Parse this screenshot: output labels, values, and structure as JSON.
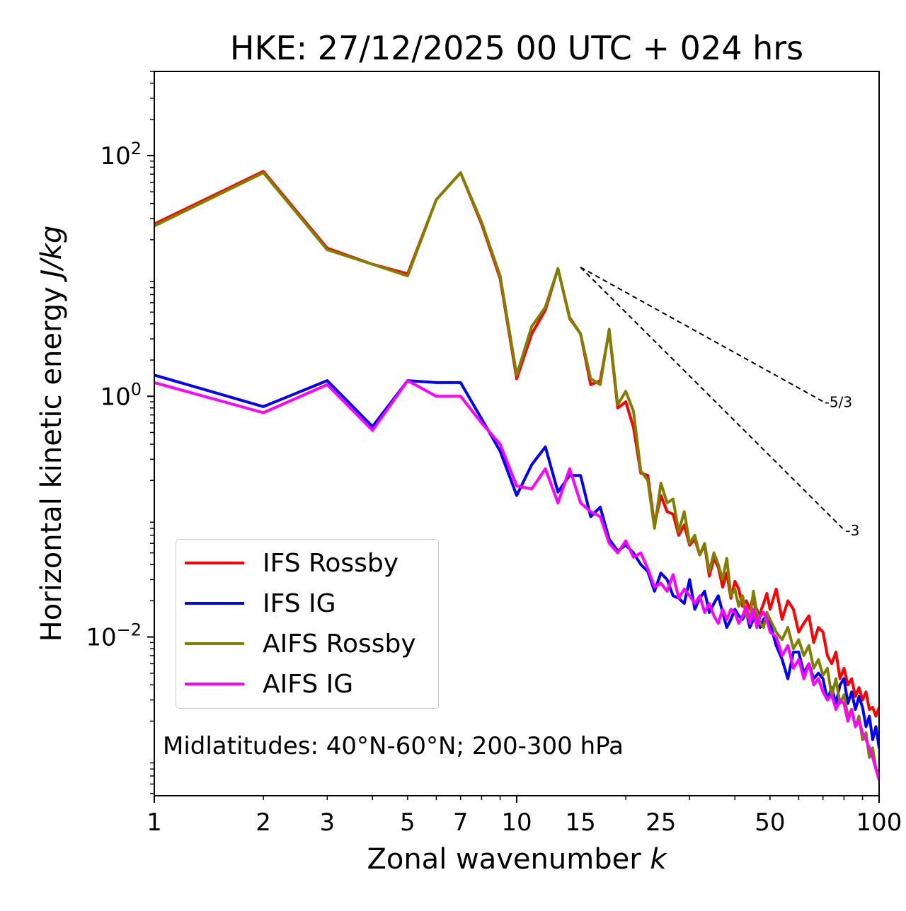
{
  "chart_data": {
    "type": "line",
    "title": "HKE: 27/12/2025 00 UTC + 024 hrs",
    "xlabel": "Zonal wavenumber",
    "xlabel_var": "k",
    "ylabel": "Horizontal kinetic energy",
    "ylabel_unit": "J/kg",
    "xscale": "log",
    "yscale": "log",
    "xlim": [
      1,
      100
    ],
    "ylim": [
      0.00048,
      500
    ],
    "xticks": [
      1,
      2,
      3,
      5,
      7,
      10,
      15,
      25,
      50,
      100
    ],
    "xtick_labels": [
      "1",
      "2",
      "3",
      "5",
      "7",
      "10",
      "15",
      "25",
      "50",
      "100"
    ],
    "yticks": [
      0.01,
      1,
      100
    ],
    "ytick_labels": [
      {
        "base": "10",
        "exp": "−2"
      },
      {
        "base": "10",
        "exp": "0"
      },
      {
        "base": "10",
        "exp": "2"
      }
    ],
    "annotation": "Midlatitudes: 40°N-60°N; 200-300 hPa",
    "legend_position": "lower-left",
    "reference_lines": [
      {
        "label": "-5/3",
        "slope": -1.6667,
        "x_start": 15,
        "x_end": 70,
        "y_start": 11.8
      },
      {
        "label": "-3",
        "slope": -3,
        "x_start": 15,
        "x_end": 80,
        "y_start": 11.8
      }
    ],
    "series": [
      {
        "name": "IFS Rossby",
        "color": "#ff0000",
        "x": [
          1,
          2,
          3,
          4,
          5,
          6,
          7,
          8,
          9,
          10,
          11,
          12,
          13,
          14,
          15,
          16,
          17,
          18,
          19,
          20,
          21,
          22,
          23,
          24,
          25,
          26,
          27,
          28,
          29,
          30,
          31,
          32,
          33,
          34,
          35,
          36,
          37,
          38,
          39,
          40,
          41,
          42,
          43,
          44,
          45,
          46,
          47,
          48,
          49,
          50,
          52,
          54,
          56,
          58,
          60,
          62,
          64,
          66,
          68,
          70,
          72,
          74,
          76,
          78,
          80,
          82,
          84,
          86,
          88,
          90,
          92,
          94,
          96,
          98,
          100
        ],
        "y": [
          27,
          74,
          17,
          12.5,
          10.4,
          43,
          72,
          27,
          9.5,
          1.4,
          3.3,
          5.2,
          11.5,
          4.5,
          3.3,
          1.25,
          1.35,
          3.5,
          0.8,
          0.9,
          0.55,
          0.23,
          0.22,
          0.085,
          0.15,
          0.11,
          0.105,
          0.07,
          0.085,
          0.058,
          0.065,
          0.048,
          0.058,
          0.032,
          0.045,
          0.038,
          0.026,
          0.034,
          0.021,
          0.029,
          0.025,
          0.018,
          0.02,
          0.017,
          0.022,
          0.014,
          0.016,
          0.019,
          0.023,
          0.017,
          0.025,
          0.014,
          0.02,
          0.017,
          0.011,
          0.013,
          0.015,
          0.009,
          0.012,
          0.011,
          0.007,
          0.006,
          0.0075,
          0.0045,
          0.0055,
          0.004,
          0.0045,
          0.0032,
          0.0038,
          0.003,
          0.0035,
          0.0025,
          0.0026,
          0.0022,
          0.0026
        ]
      },
      {
        "name": "IFS IG",
        "color": "#0000ff",
        "x": [
          1,
          2,
          3,
          4,
          5,
          6,
          7,
          8,
          9,
          10,
          11,
          12,
          13,
          14,
          15,
          16,
          17,
          18,
          19,
          20,
          21,
          22,
          23,
          24,
          25,
          26,
          27,
          28,
          29,
          30,
          31,
          32,
          33,
          34,
          35,
          36,
          37,
          38,
          39,
          40,
          41,
          42,
          43,
          44,
          45,
          46,
          47,
          48,
          49,
          50,
          52,
          54,
          56,
          58,
          60,
          62,
          64,
          66,
          68,
          70,
          72,
          74,
          76,
          78,
          80,
          82,
          84,
          86,
          88,
          90,
          92,
          94,
          96,
          98,
          100
        ],
        "y": [
          1.5,
          0.82,
          1.35,
          0.56,
          1.35,
          1.3,
          1.3,
          0.65,
          0.35,
          0.15,
          0.27,
          0.38,
          0.16,
          0.22,
          0.22,
          0.1,
          0.12,
          0.065,
          0.052,
          0.058,
          0.05,
          0.04,
          0.035,
          0.024,
          0.034,
          0.03,
          0.022,
          0.021,
          0.019,
          0.03,
          0.017,
          0.021,
          0.024,
          0.016,
          0.019,
          0.022,
          0.016,
          0.012,
          0.014,
          0.017,
          0.015,
          0.014,
          0.016,
          0.012,
          0.014,
          0.017,
          0.012,
          0.014,
          0.015,
          0.013,
          0.0085,
          0.0065,
          0.0045,
          0.0075,
          0.0075,
          0.005,
          0.006,
          0.0045,
          0.005,
          0.0045,
          0.003,
          0.0038,
          0.0028,
          0.004,
          0.0045,
          0.0028,
          0.0035,
          0.0025,
          0.0032,
          0.0026,
          0.0018,
          0.0022,
          0.0014,
          0.0018,
          0.0012
        ]
      },
      {
        "name": "AIFS Rossby",
        "color": "#808000",
        "x": [
          1,
          2,
          3,
          4,
          5,
          6,
          7,
          8,
          9,
          10,
          11,
          12,
          13,
          14,
          15,
          16,
          17,
          18,
          19,
          20,
          21,
          22,
          23,
          24,
          25,
          26,
          27,
          28,
          29,
          30,
          31,
          32,
          33,
          34,
          35,
          36,
          37,
          38,
          39,
          40,
          41,
          42,
          43,
          44,
          45,
          46,
          47,
          48,
          49,
          50,
          52,
          54,
          56,
          58,
          60,
          62,
          64,
          66,
          68,
          70,
          72,
          74,
          76,
          78,
          80,
          82,
          84,
          86,
          88,
          90,
          92,
          94,
          96,
          98,
          100
        ],
        "y": [
          26,
          72,
          16.5,
          12.5,
          10,
          43,
          72,
          28,
          10,
          1.5,
          3.8,
          5.5,
          11.5,
          4.4,
          3.3,
          1.4,
          1.25,
          3.6,
          0.85,
          1.1,
          0.75,
          0.24,
          0.2,
          0.08,
          0.19,
          0.13,
          0.14,
          0.075,
          0.11,
          0.06,
          0.07,
          0.048,
          0.06,
          0.035,
          0.05,
          0.04,
          0.03,
          0.045,
          0.022,
          0.025,
          0.018,
          0.022,
          0.015,
          0.014,
          0.024,
          0.016,
          0.013,
          0.012,
          0.016,
          0.014,
          0.011,
          0.0095,
          0.012,
          0.008,
          0.0095,
          0.007,
          0.0085,
          0.0055,
          0.0065,
          0.0048,
          0.0055,
          0.0032,
          0.0045,
          0.0028,
          0.0033,
          0.0022,
          0.0025,
          0.0018,
          0.0022,
          0.0014,
          0.0016,
          0.001,
          0.0012,
          0.0008,
          0.00075
        ]
      },
      {
        "name": "AIFS IG",
        "color": "#ff00ff",
        "x": [
          1,
          2,
          3,
          4,
          5,
          6,
          7,
          8,
          9,
          10,
          11,
          12,
          13,
          14,
          15,
          16,
          17,
          18,
          19,
          20,
          21,
          22,
          23,
          24,
          25,
          26,
          27,
          28,
          29,
          30,
          31,
          32,
          33,
          34,
          35,
          36,
          37,
          38,
          39,
          40,
          41,
          42,
          43,
          44,
          45,
          46,
          47,
          48,
          49,
          50,
          52,
          54,
          56,
          58,
          60,
          62,
          64,
          66,
          68,
          70,
          72,
          74,
          76,
          78,
          80,
          82,
          84,
          86,
          88,
          90,
          92,
          94,
          96,
          98,
          100
        ],
        "y": [
          1.3,
          0.73,
          1.25,
          0.52,
          1.35,
          1.0,
          1.0,
          0.6,
          0.4,
          0.18,
          0.17,
          0.25,
          0.13,
          0.25,
          0.13,
          0.11,
          0.1,
          0.06,
          0.05,
          0.063,
          0.046,
          0.05,
          0.037,
          0.026,
          0.028,
          0.024,
          0.033,
          0.021,
          0.025,
          0.022,
          0.019,
          0.022,
          0.016,
          0.019,
          0.015,
          0.013,
          0.017,
          0.014,
          0.017,
          0.016,
          0.013,
          0.015,
          0.018,
          0.013,
          0.017,
          0.012,
          0.015,
          0.016,
          0.014,
          0.011,
          0.01,
          0.007,
          0.0085,
          0.0055,
          0.0065,
          0.0045,
          0.006,
          0.004,
          0.0045,
          0.0035,
          0.003,
          0.0033,
          0.0025,
          0.003,
          0.0028,
          0.002,
          0.0025,
          0.0018,
          0.002,
          0.0016,
          0.0014,
          0.0012,
          0.001,
          0.0008,
          0.00065
        ]
      }
    ]
  }
}
